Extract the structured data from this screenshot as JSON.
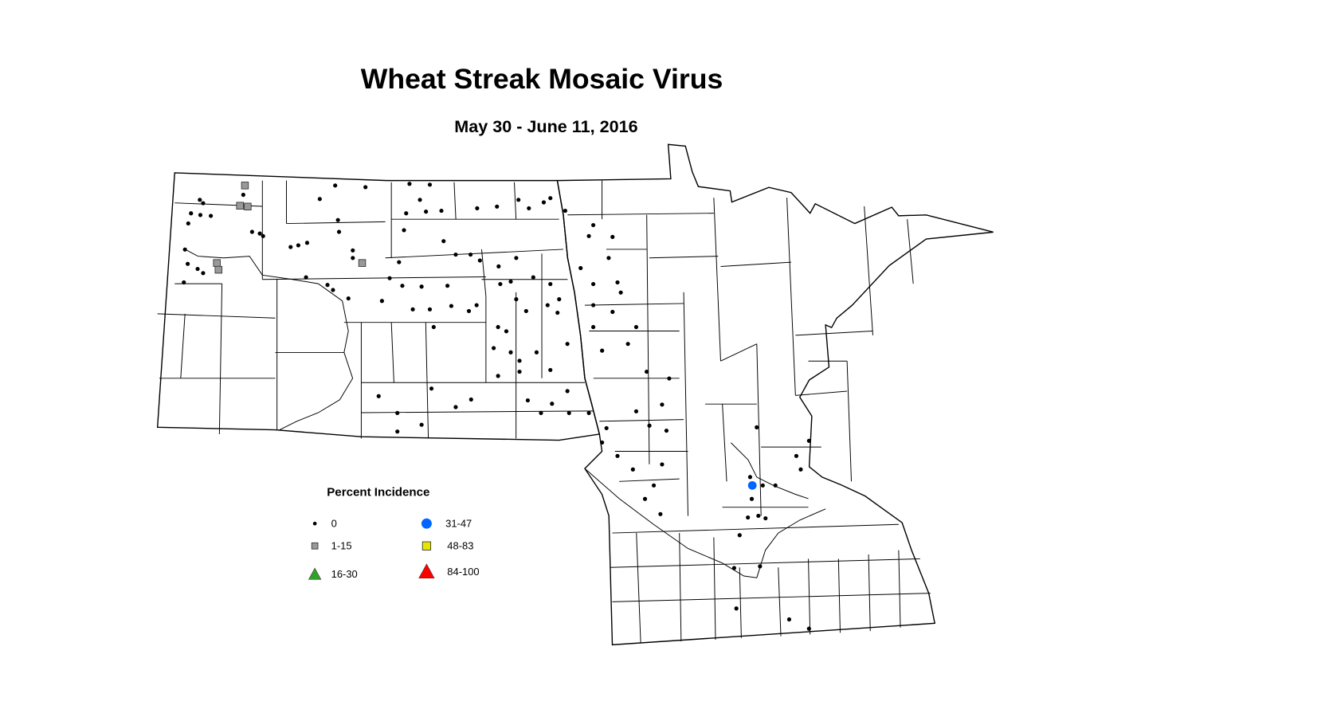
{
  "title": "Wheat Streak Mosaic Virus",
  "subtitle": "May 30 - June 11, 2016",
  "legend": {
    "title": "Percent Incidence",
    "items": [
      {
        "label": "0",
        "shape": "dot",
        "color": "#000000"
      },
      {
        "label": "1-15",
        "shape": "square",
        "color": "#999999"
      },
      {
        "label": "16-30",
        "shape": "triangle",
        "color": "#33A02C"
      },
      {
        "label": "31-47",
        "shape": "circle",
        "color": "#0066FF"
      },
      {
        "label": "48-83",
        "shape": "square",
        "color": "#E6E600"
      },
      {
        "label": "84-100",
        "shape": "triangle",
        "color": "#FF0000"
      }
    ]
  },
  "chart_data": {
    "type": "scatter",
    "regions": [
      "North Dakota",
      "Minnesota"
    ],
    "points_lonlat": {
      "0": [
        [
          -103.59,
          48.72
        ],
        [
          -103.53,
          48.68
        ],
        [
          -103.75,
          48.56
        ],
        [
          -103.58,
          48.54
        ],
        [
          -103.39,
          48.53
        ],
        [
          -103.8,
          48.44
        ],
        [
          -103.86,
          48.13
        ],
        [
          -103.81,
          47.96
        ],
        [
          -103.63,
          47.9
        ],
        [
          -103.53,
          47.85
        ],
        [
          -103.88,
          47.74
        ],
        [
          -102.8,
          48.78
        ],
        [
          -102.64,
          48.34
        ],
        [
          -102.5,
          48.32
        ],
        [
          -102.44,
          48.29
        ],
        [
          -101.94,
          48.16
        ],
        [
          -101.8,
          48.18
        ],
        [
          -101.64,
          48.21
        ],
        [
          -101.66,
          47.8
        ],
        [
          -101.27,
          47.71
        ],
        [
          -101.17,
          47.65
        ],
        [
          -100.89,
          47.55
        ],
        [
          -101.41,
          48.73
        ],
        [
          -101.13,
          48.89
        ],
        [
          -100.58,
          48.87
        ],
        [
          -101.08,
          48.48
        ],
        [
          -101.06,
          48.34
        ],
        [
          -100.81,
          48.12
        ],
        [
          -100.81,
          48.03
        ],
        [
          -100.14,
          47.79
        ],
        [
          -100.28,
          47.52
        ],
        [
          -99.84,
          48.56
        ],
        [
          -99.88,
          48.36
        ],
        [
          -99.78,
          48.91
        ],
        [
          -99.59,
          48.72
        ],
        [
          -99.48,
          48.58
        ],
        [
          -99.41,
          48.9
        ],
        [
          -99.2,
          48.59
        ],
        [
          -99.16,
          48.23
        ],
        [
          -98.94,
          48.07
        ],
        [
          -98.67,
          48.07
        ],
        [
          -98.5,
          48.0
        ],
        [
          -99.97,
          47.98
        ],
        [
          -99.91,
          47.7
        ],
        [
          -99.56,
          47.69
        ],
        [
          -99.72,
          47.42
        ],
        [
          -99.41,
          47.42
        ],
        [
          -99.02,
          47.46
        ],
        [
          -98.7,
          47.4
        ],
        [
          -99.34,
          47.21
        ],
        [
          -99.09,
          47.7
        ],
        [
          -98.56,
          47.47
        ],
        [
          -98.16,
          47.93
        ],
        [
          -98.13,
          47.72
        ],
        [
          -97.94,
          47.75
        ],
        [
          -97.84,
          48.03
        ],
        [
          -97.53,
          47.8
        ],
        [
          -98.55,
          48.62
        ],
        [
          -98.19,
          48.64
        ],
        [
          -97.8,
          48.72
        ],
        [
          -97.61,
          48.62
        ],
        [
          -97.34,
          48.69
        ],
        [
          -97.22,
          48.74
        ],
        [
          -96.95,
          48.59
        ],
        [
          -96.44,
          48.42
        ],
        [
          -96.52,
          48.29
        ],
        [
          -96.09,
          48.28
        ],
        [
          -96.16,
          48.03
        ],
        [
          -96.67,
          47.91
        ],
        [
          -96.44,
          47.72
        ],
        [
          -96.0,
          47.74
        ],
        [
          -95.94,
          47.62
        ],
        [
          -96.44,
          47.47
        ],
        [
          -96.09,
          47.39
        ],
        [
          -97.22,
          47.72
        ],
        [
          -97.06,
          47.54
        ],
        [
          -97.27,
          47.47
        ],
        [
          -97.09,
          47.38
        ],
        [
          -97.84,
          47.54
        ],
        [
          -97.66,
          47.4
        ],
        [
          -98.17,
          47.21
        ],
        [
          -98.02,
          47.16
        ],
        [
          -98.25,
          46.96
        ],
        [
          -97.94,
          46.91
        ],
        [
          -97.78,
          46.81
        ],
        [
          -98.17,
          46.63
        ],
        [
          -97.78,
          46.68
        ],
        [
          -97.47,
          46.91
        ],
        [
          -97.22,
          46.7
        ],
        [
          -96.91,
          47.01
        ],
        [
          -96.44,
          47.21
        ],
        [
          -96.28,
          46.93
        ],
        [
          -95.81,
          47.01
        ],
        [
          -95.66,
          47.21
        ],
        [
          -95.47,
          46.68
        ],
        [
          -95.06,
          46.6
        ],
        [
          -100.34,
          46.39
        ],
        [
          -100.0,
          46.19
        ],
        [
          -100.0,
          45.97
        ],
        [
          -99.56,
          46.05
        ],
        [
          -99.38,
          46.48
        ],
        [
          -98.94,
          46.26
        ],
        [
          -98.66,
          46.35
        ],
        [
          -97.63,
          46.34
        ],
        [
          -97.39,
          46.19
        ],
        [
          -97.19,
          46.3
        ],
        [
          -96.91,
          46.45
        ],
        [
          -96.88,
          46.19
        ],
        [
          -96.52,
          46.19
        ],
        [
          -96.2,
          46.01
        ],
        [
          -96.28,
          45.84
        ],
        [
          -95.66,
          46.21
        ],
        [
          -95.42,
          46.04
        ],
        [
          -95.19,
          46.29
        ],
        [
          -95.11,
          45.98
        ],
        [
          -96.0,
          45.68
        ],
        [
          -95.72,
          45.52
        ],
        [
          -95.19,
          45.58
        ],
        [
          -95.34,
          45.33
        ],
        [
          -95.5,
          45.17
        ],
        [
          -95.22,
          44.99
        ],
        [
          -93.47,
          46.02
        ],
        [
          -92.75,
          45.68
        ],
        [
          -92.67,
          45.52
        ],
        [
          -92.52,
          45.86
        ],
        [
          -93.59,
          45.43
        ],
        [
          -93.36,
          45.33
        ],
        [
          -93.13,
          45.33
        ],
        [
          -93.56,
          45.17
        ],
        [
          -93.44,
          44.97
        ],
        [
          -93.63,
          44.95
        ],
        [
          -93.31,
          44.94
        ],
        [
          -93.78,
          44.74
        ],
        [
          -93.88,
          44.35
        ],
        [
          -93.41,
          44.37
        ],
        [
          -93.84,
          43.87
        ],
        [
          -92.88,
          43.74
        ],
        [
          -92.52,
          43.63
        ]
      ],
      "1-15": [
        [
          -102.77,
          48.89
        ],
        [
          -102.86,
          48.65
        ],
        [
          -102.72,
          48.64
        ],
        [
          -103.28,
          47.97
        ],
        [
          -103.25,
          47.89
        ],
        [
          -100.64,
          47.97
        ]
      ],
      "16-30": [],
      "31-47": [
        [
          -93.55,
          45.33
        ]
      ],
      "48-83": [],
      "84-100": []
    }
  }
}
